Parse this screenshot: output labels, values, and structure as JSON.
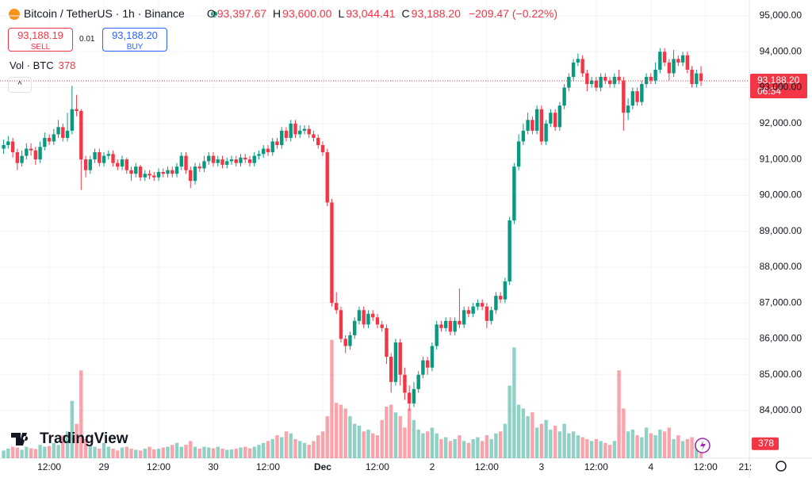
{
  "header": {
    "symbol": "Bitcoin / TetherUS · 1h · Binance",
    "ohlc": [
      {
        "key": "O",
        "value": "93,397.67"
      },
      {
        "key": "H",
        "value": "93,600.00"
      },
      {
        "key": "L",
        "value": "93,044.41"
      },
      {
        "key": "C",
        "value": "93,188.20"
      }
    ],
    "change": "−209.47 (−0.22%)",
    "sell_price": "93,188.19",
    "sell_label": "SELL",
    "spread": "0.01",
    "buy_price": "93,188.20",
    "buy_label": "BUY",
    "volume_legend": "Vol · BTC",
    "volume_value": "378",
    "price_tag": "93,188.20",
    "countdown": "06:54",
    "volume_tag": "378",
    "logo": "TradingView"
  },
  "chart_data": {
    "type": "candlestick",
    "up_color": "#089981",
    "down_color": "#f23645",
    "x": [
      2,
      3,
      4,
      5,
      6,
      7,
      8,
      9,
      10,
      11,
      12,
      13,
      14,
      15,
      16,
      17,
      18,
      19,
      20,
      21,
      22,
      23,
      24,
      25,
      26,
      27,
      28,
      29,
      30,
      31,
      32,
      33,
      34,
      35,
      36,
      37,
      38,
      39,
      40,
      41,
      42,
      43,
      44,
      45,
      46,
      47,
      48,
      49,
      50,
      51,
      52,
      53,
      54,
      55,
      56,
      57,
      58,
      59,
      60,
      61,
      62,
      63,
      64,
      65,
      66,
      67,
      68,
      69,
      70,
      71,
      72,
      73,
      74,
      75,
      76,
      77,
      78,
      79,
      80,
      81,
      82,
      83,
      84,
      85,
      86,
      87,
      88,
      89,
      90,
      91,
      92,
      93,
      94,
      95,
      96,
      97,
      98,
      99,
      100,
      101,
      102,
      103,
      104,
      105,
      106,
      107,
      108,
      109,
      110,
      111,
      112,
      113,
      114,
      115,
      116,
      117,
      118,
      119,
      120,
      121,
      122,
      123,
      124,
      125,
      126,
      127,
      128,
      129,
      130,
      131,
      132,
      133,
      134,
      135,
      136,
      137,
      138,
      139,
      140,
      141,
      142,
      143,
      144,
      145,
      146,
      147,
      148,
      149,
      150,
      151,
      152,
      153,
      154,
      155
    ],
    "open": [
      91300,
      91400,
      91500,
      91200,
      90900,
      91100,
      91300,
      91250,
      91000,
      91350,
      91600,
      91500,
      91700,
      91900,
      91600,
      91800,
      92400,
      92350,
      91000,
      90700,
      91000,
      91200,
      90900,
      91100,
      91150,
      90900,
      90800,
      91000,
      90700,
      90600,
      90800,
      90500,
      90600,
      90550,
      90500,
      90650,
      90600,
      90700,
      90600,
      90800,
      91100,
      90700,
      90400,
      90800,
      90750,
      90950,
      91100,
      90900,
      91000,
      90850,
      90950,
      91000,
      90900,
      91050,
      91000,
      90900,
      91100,
      91150,
      91300,
      91200,
      91500,
      91400,
      91800,
      91600,
      92000,
      91700,
      91800,
      91850,
      91700,
      91600,
      91400,
      91200,
      89800,
      87000,
      86800,
      86000,
      85800,
      86100,
      86500,
      86800,
      86400,
      86700,
      86600,
      86400,
      86300,
      85500,
      84800,
      85900,
      85000,
      84500,
      84200,
      84600,
      85000,
      85400,
      85200,
      85800,
      86400,
      86300,
      86500,
      86200,
      86500,
      86400,
      86800,
      86700,
      86900,
      87000,
      86900,
      86500,
      86800,
      87200,
      87100,
      87600,
      89300,
      90800,
      91500,
      91800,
      92100,
      91800,
      92400,
      91500,
      92000,
      92300,
      91900,
      92500,
      93000,
      93300,
      93700,
      93800,
      93400,
      93100,
      93200,
      93000,
      93300,
      93200,
      93100,
      93300,
      93200,
      92300,
      92500,
      92900,
      92600,
      93100,
      93300,
      93200,
      93500,
      94000,
      93700,
      93400,
      93800,
      93700,
      93900,
      93500,
      93100,
      93397.67
    ],
    "high": [
      91550,
      91650,
      91600,
      91300,
      91250,
      91450,
      91450,
      91350,
      91500,
      91750,
      91700,
      91850,
      92100,
      92000,
      92300,
      93050,
      92800,
      92400,
      91100,
      91100,
      91300,
      91300,
      91200,
      91250,
      91250,
      91000,
      91100,
      91050,
      90800,
      90900,
      90850,
      90700,
      90700,
      90650,
      90750,
      90750,
      90800,
      90800,
      90900,
      91200,
      91200,
      90800,
      90900,
      90900,
      91100,
      91200,
      91200,
      91100,
      91100,
      91050,
      91100,
      91100,
      91150,
      91150,
      91100,
      91200,
      91250,
      91400,
      91400,
      91600,
      91600,
      91900,
      91900,
      92100,
      92100,
      91950,
      91950,
      91950,
      91800,
      91700,
      91500,
      91300,
      89900,
      87300,
      86900,
      86100,
      86200,
      86600,
      86900,
      86900,
      86800,
      86800,
      86700,
      86500,
      86400,
      85600,
      86000,
      86000,
      85200,
      84700,
      84800,
      85100,
      85500,
      85500,
      85900,
      86500,
      86500,
      86600,
      86600,
      86600,
      87400,
      86900,
      86900,
      87000,
      87100,
      87100,
      87000,
      86900,
      87300,
      87300,
      87700,
      89400,
      90900,
      91700,
      92000,
      92300,
      92200,
      92500,
      92500,
      92100,
      92400,
      92400,
      92600,
      93100,
      93400,
      93800,
      93950,
      93900,
      93500,
      93300,
      93300,
      93400,
      93400,
      93300,
      93400,
      93500,
      93300,
      92700,
      93000,
      93000,
      93200,
      93400,
      93400,
      93700,
      94100,
      94100,
      93800,
      94050,
      93900,
      94000,
      94000,
      93600,
      93500,
      93600
    ],
    "low": [
      91150,
      91300,
      91050,
      90700,
      90800,
      91000,
      91100,
      90850,
      90900,
      91250,
      91400,
      91400,
      91600,
      91500,
      91500,
      91700,
      92200,
      90150,
      90500,
      90600,
      90900,
      90800,
      90800,
      91000,
      90800,
      90700,
      90700,
      90600,
      90400,
      90500,
      90400,
      90400,
      90450,
      90400,
      90400,
      90500,
      90500,
      90500,
      90500,
      90700,
      90600,
      90200,
      90300,
      90650,
      90650,
      90850,
      90800,
      90800,
      90750,
      90750,
      90850,
      90800,
      90800,
      90900,
      90800,
      90800,
      91000,
      91050,
      91100,
      91100,
      91300,
      91300,
      91500,
      91500,
      91600,
      91600,
      91700,
      91600,
      91500,
      91300,
      91100,
      89700,
      86900,
      86700,
      85900,
      85600,
      85700,
      86000,
      86400,
      86300,
      86300,
      86500,
      86300,
      86200,
      85300,
      84500,
      84700,
      84700,
      84300,
      84000,
      84100,
      84500,
      84900,
      85000,
      85100,
      85700,
      86200,
      86200,
      86100,
      86100,
      86300,
      86300,
      86600,
      86600,
      86800,
      86800,
      86300,
      86400,
      86700,
      87000,
      87000,
      87500,
      89200,
      90700,
      91400,
      91700,
      91700,
      91700,
      91400,
      91400,
      91900,
      91800,
      91800,
      92400,
      92900,
      93200,
      93600,
      93300,
      92900,
      93000,
      92900,
      92900,
      93100,
      93000,
      93000,
      93100,
      91800,
      92100,
      92400,
      92500,
      92500,
      93000,
      93100,
      93100,
      93400,
      93600,
      93200,
      93300,
      93600,
      93600,
      93400,
      93000,
      93000,
      93044.41
    ],
    "close": [
      91400,
      91500,
      91200,
      90900,
      91100,
      91300,
      91250,
      91000,
      91350,
      91600,
      91500,
      91700,
      91900,
      91600,
      91800,
      92400,
      92350,
      91000,
      90700,
      91000,
      91200,
      90900,
      91100,
      91150,
      90900,
      90800,
      91000,
      90700,
      90600,
      90800,
      90500,
      90600,
      90550,
      90500,
      90650,
      90600,
      90700,
      90600,
      90800,
      91100,
      90700,
      90400,
      90800,
      90750,
      90950,
      91100,
      90900,
      91000,
      90850,
      90950,
      91000,
      90900,
      91050,
      91000,
      90900,
      91100,
      91150,
      91300,
      91200,
      91500,
      91400,
      91800,
      91600,
      92000,
      91700,
      91800,
      91850,
      91700,
      91600,
      91400,
      91200,
      89800,
      87000,
      86800,
      86000,
      85800,
      86100,
      86500,
      86800,
      86400,
      86700,
      86600,
      86400,
      86300,
      85500,
      84800,
      85900,
      85000,
      84500,
      84200,
      84600,
      85000,
      85400,
      85200,
      85800,
      86400,
      86300,
      86500,
      86200,
      86500,
      86400,
      86800,
      86700,
      86900,
      87000,
      86900,
      86500,
      86800,
      87200,
      87100,
      87600,
      89300,
      90800,
      91500,
      91800,
      92100,
      91800,
      92400,
      91500,
      92000,
      92300,
      91900,
      92500,
      93000,
      93300,
      93700,
      93800,
      93400,
      93100,
      93200,
      93000,
      93300,
      93200,
      93100,
      93300,
      93200,
      92300,
      92500,
      92900,
      92600,
      93100,
      93300,
      93200,
      93500,
      94000,
      93700,
      93400,
      93800,
      93700,
      93900,
      93500,
      93100,
      93397.67,
      93188.2
    ],
    "volume": [
      200,
      250,
      300,
      280,
      220,
      300,
      260,
      240,
      350,
      300,
      320,
      400,
      350,
      600,
      700,
      1500,
      900,
      2300,
      500,
      350,
      300,
      250,
      400,
      300,
      250,
      200,
      280,
      300,
      250,
      220,
      200,
      250,
      300,
      230,
      250,
      280,
      300,
      350,
      400,
      300,
      350,
      450,
      300,
      250,
      300,
      280,
      260,
      300,
      250,
      220,
      230,
      250,
      280,
      300,
      260,
      300,
      350,
      400,
      450,
      500,
      600,
      550,
      700,
      650,
      500,
      450,
      400,
      350,
      450,
      600,
      700,
      1100,
      3100,
      1450,
      1400,
      1300,
      1100,
      900,
      850,
      700,
      750,
      650,
      600,
      1000,
      1350,
      1400,
      1200,
      1100,
      800,
      1300,
      1000,
      750,
      650,
      700,
      800,
      650,
      500,
      550,
      450,
      500,
      600,
      450,
      400,
      500,
      550,
      450,
      600,
      500,
      650,
      700,
      900,
      1900,
      2900,
      1400,
      1300,
      1100,
      1200,
      800,
      900,
      1000,
      750,
      850,
      700,
      900,
      650,
      700,
      600,
      550,
      500,
      450,
      500,
      450,
      400,
      350,
      450,
      2300,
      1300,
      700,
      750,
      600,
      550,
      800,
      650,
      600,
      750,
      700,
      800,
      500,
      600,
      450,
      500,
      550,
      400,
      378
    ],
    "xlim": [
      1.2,
      165.6
    ],
    "xticks": [
      {
        "value": 12,
        "label": "12:00"
      },
      {
        "value": 24,
        "label": "29"
      },
      {
        "value": 36,
        "label": "12:00"
      },
      {
        "value": 48,
        "label": "30"
      },
      {
        "value": 60,
        "label": "12:00"
      },
      {
        "value": 72,
        "label": "Dec"
      },
      {
        "value": 84,
        "label": "12:00"
      },
      {
        "value": 96,
        "label": "2"
      },
      {
        "value": 108,
        "label": "12:00"
      },
      {
        "value": 120,
        "label": "3"
      },
      {
        "value": 132,
        "label": "12:00"
      },
      {
        "value": 144,
        "label": "4"
      },
      {
        "value": 156,
        "label": "12:00"
      },
      {
        "value": 164.7,
        "label": "21:"
      }
    ],
    "ylim": [
      82675,
      95442
    ],
    "yticks": [
      {
        "value": 84000,
        "label": "84,000.00"
      },
      {
        "value": 85000,
        "label": "85,000.00"
      },
      {
        "value": 86000,
        "label": "86,000.00"
      },
      {
        "value": 87000,
        "label": "87,000.00"
      },
      {
        "value": 88000,
        "label": "88,000.00"
      },
      {
        "value": 89000,
        "label": "89,000.00"
      },
      {
        "value": 90000,
        "label": "90,000.00"
      },
      {
        "value": 91000,
        "label": "91,000.00"
      },
      {
        "value": 92000,
        "label": "92,000.00"
      },
      {
        "value": 93000,
        "label": "93,000.00"
      },
      {
        "value": 94000,
        "label": "94,000.00"
      },
      {
        "value": 95000,
        "label": "95,000.00"
      }
    ],
    "y2lim": [
      0,
      12000
    ],
    "grid": true
  }
}
